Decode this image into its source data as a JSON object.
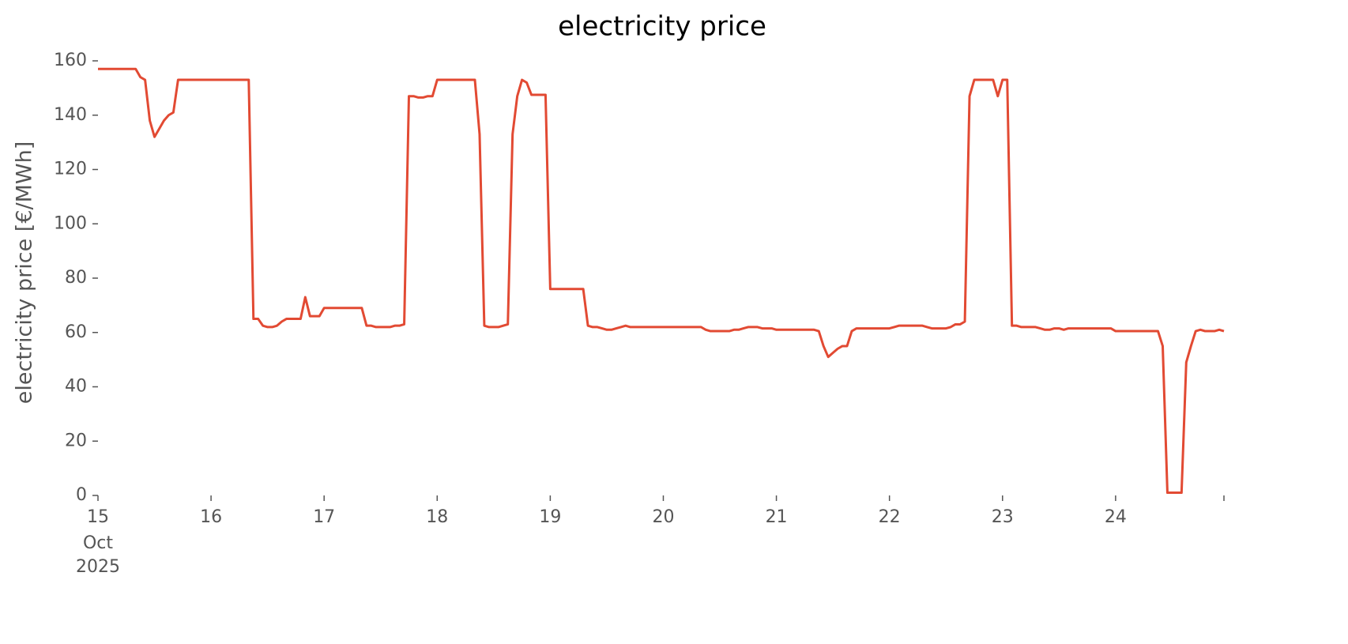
{
  "chart_data": {
    "type": "line",
    "title": "electricity price",
    "ylabel": "electricity price [€/MWh]",
    "x": [
      "2025-10-15T00:00",
      "2025-10-15T01:00",
      "2025-10-15T02:00",
      "2025-10-15T03:00",
      "2025-10-15T04:00",
      "2025-10-15T05:00",
      "2025-10-15T06:00",
      "2025-10-15T07:00",
      "2025-10-15T08:00",
      "2025-10-15T09:00",
      "2025-10-15T10:00",
      "2025-10-15T11:00",
      "2025-10-15T12:00",
      "2025-10-15T13:00",
      "2025-10-15T14:00",
      "2025-10-15T15:00",
      "2025-10-15T16:00",
      "2025-10-15T17:00",
      "2025-10-15T18:00",
      "2025-10-15T19:00",
      "2025-10-15T20:00",
      "2025-10-15T21:00",
      "2025-10-15T22:00",
      "2025-10-15T23:00",
      "2025-10-16T00:00",
      "2025-10-16T01:00",
      "2025-10-16T02:00",
      "2025-10-16T03:00",
      "2025-10-16T04:00",
      "2025-10-16T05:00",
      "2025-10-16T06:00",
      "2025-10-16T07:00",
      "2025-10-16T08:00",
      "2025-10-16T09:00",
      "2025-10-16T10:00",
      "2025-10-16T11:00",
      "2025-10-16T12:00",
      "2025-10-16T13:00",
      "2025-10-16T14:00",
      "2025-10-16T15:00",
      "2025-10-16T16:00",
      "2025-10-16T17:00",
      "2025-10-16T18:00",
      "2025-10-16T19:00",
      "2025-10-16T20:00",
      "2025-10-16T21:00",
      "2025-10-16T22:00",
      "2025-10-16T23:00",
      "2025-10-17T00:00",
      "2025-10-17T01:00",
      "2025-10-17T02:00",
      "2025-10-17T03:00",
      "2025-10-17T04:00",
      "2025-10-17T05:00",
      "2025-10-17T06:00",
      "2025-10-17T07:00",
      "2025-10-17T08:00",
      "2025-10-17T09:00",
      "2025-10-17T10:00",
      "2025-10-17T11:00",
      "2025-10-17T12:00",
      "2025-10-17T13:00",
      "2025-10-17T14:00",
      "2025-10-17T15:00",
      "2025-10-17T16:00",
      "2025-10-17T17:00",
      "2025-10-17T18:00",
      "2025-10-17T19:00",
      "2025-10-17T20:00",
      "2025-10-17T21:00",
      "2025-10-17T22:00",
      "2025-10-17T23:00",
      "2025-10-18T00:00",
      "2025-10-18T01:00",
      "2025-10-18T02:00",
      "2025-10-18T03:00",
      "2025-10-18T04:00",
      "2025-10-18T05:00",
      "2025-10-18T06:00",
      "2025-10-18T07:00",
      "2025-10-18T08:00",
      "2025-10-18T09:00",
      "2025-10-18T10:00",
      "2025-10-18T11:00",
      "2025-10-18T12:00",
      "2025-10-18T13:00",
      "2025-10-18T14:00",
      "2025-10-18T15:00",
      "2025-10-18T16:00",
      "2025-10-18T17:00",
      "2025-10-18T18:00",
      "2025-10-18T19:00",
      "2025-10-18T20:00",
      "2025-10-18T21:00",
      "2025-10-18T22:00",
      "2025-10-18T23:00",
      "2025-10-19T00:00",
      "2025-10-19T01:00",
      "2025-10-19T02:00",
      "2025-10-19T03:00",
      "2025-10-19T04:00",
      "2025-10-19T05:00",
      "2025-10-19T06:00",
      "2025-10-19T07:00",
      "2025-10-19T08:00",
      "2025-10-19T09:00",
      "2025-10-19T10:00",
      "2025-10-19T11:00",
      "2025-10-19T12:00",
      "2025-10-19T13:00",
      "2025-10-19T14:00",
      "2025-10-19T15:00",
      "2025-10-19T16:00",
      "2025-10-19T17:00",
      "2025-10-19T18:00",
      "2025-10-19T19:00",
      "2025-10-19T20:00",
      "2025-10-19T21:00",
      "2025-10-19T22:00",
      "2025-10-19T23:00",
      "2025-10-20T00:00",
      "2025-10-20T01:00",
      "2025-10-20T02:00",
      "2025-10-20T03:00",
      "2025-10-20T04:00",
      "2025-10-20T05:00",
      "2025-10-20T06:00",
      "2025-10-20T07:00",
      "2025-10-20T08:00",
      "2025-10-20T09:00",
      "2025-10-20T10:00",
      "2025-10-20T11:00",
      "2025-10-20T12:00",
      "2025-10-20T13:00",
      "2025-10-20T14:00",
      "2025-10-20T15:00",
      "2025-10-20T16:00",
      "2025-10-20T17:00",
      "2025-10-20T18:00",
      "2025-10-20T19:00",
      "2025-10-20T20:00",
      "2025-10-20T21:00",
      "2025-10-20T22:00",
      "2025-10-20T23:00",
      "2025-10-21T00:00",
      "2025-10-21T01:00",
      "2025-10-21T02:00",
      "2025-10-21T03:00",
      "2025-10-21T04:00",
      "2025-10-21T05:00",
      "2025-10-21T06:00",
      "2025-10-21T07:00",
      "2025-10-21T08:00",
      "2025-10-21T09:00",
      "2025-10-21T10:00",
      "2025-10-21T11:00",
      "2025-10-21T12:00",
      "2025-10-21T13:00",
      "2025-10-21T14:00",
      "2025-10-21T15:00",
      "2025-10-21T16:00",
      "2025-10-21T17:00",
      "2025-10-21T18:00",
      "2025-10-21T19:00",
      "2025-10-21T20:00",
      "2025-10-21T21:00",
      "2025-10-21T22:00",
      "2025-10-21T23:00",
      "2025-10-22T00:00",
      "2025-10-22T01:00",
      "2025-10-22T02:00",
      "2025-10-22T03:00",
      "2025-10-22T04:00",
      "2025-10-22T05:00",
      "2025-10-22T06:00",
      "2025-10-22T07:00",
      "2025-10-22T08:00",
      "2025-10-22T09:00",
      "2025-10-22T10:00",
      "2025-10-22T11:00",
      "2025-10-22T12:00",
      "2025-10-22T13:00",
      "2025-10-22T14:00",
      "2025-10-22T15:00",
      "2025-10-22T16:00",
      "2025-10-22T17:00",
      "2025-10-22T18:00",
      "2025-10-22T19:00",
      "2025-10-22T20:00",
      "2025-10-22T21:00",
      "2025-10-22T22:00",
      "2025-10-22T23:00",
      "2025-10-23T00:00",
      "2025-10-23T01:00",
      "2025-10-23T02:00",
      "2025-10-23T03:00",
      "2025-10-23T04:00",
      "2025-10-23T05:00",
      "2025-10-23T06:00",
      "2025-10-23T07:00",
      "2025-10-23T08:00",
      "2025-10-23T09:00",
      "2025-10-23T10:00",
      "2025-10-23T11:00",
      "2025-10-23T12:00",
      "2025-10-23T13:00",
      "2025-10-23T14:00",
      "2025-10-23T15:00",
      "2025-10-23T16:00",
      "2025-10-23T17:00",
      "2025-10-23T18:00",
      "2025-10-23T19:00",
      "2025-10-23T20:00",
      "2025-10-23T21:00",
      "2025-10-23T22:00",
      "2025-10-23T23:00",
      "2025-10-24T00:00",
      "2025-10-24T01:00",
      "2025-10-24T02:00",
      "2025-10-24T03:00",
      "2025-10-24T04:00",
      "2025-10-24T05:00",
      "2025-10-24T06:00",
      "2025-10-24T07:00",
      "2025-10-24T08:00",
      "2025-10-24T09:00",
      "2025-10-24T10:00",
      "2025-10-24T11:00",
      "2025-10-24T12:00",
      "2025-10-24T13:00",
      "2025-10-24T14:00",
      "2025-10-24T15:00",
      "2025-10-24T16:00",
      "2025-10-24T17:00",
      "2025-10-24T18:00",
      "2025-10-24T19:00",
      "2025-10-24T20:00",
      "2025-10-24T21:00",
      "2025-10-24T22:00",
      "2025-10-24T23:00"
    ],
    "series": [
      {
        "color": "#e24a33",
        "values": [
          157,
          157,
          157,
          157,
          157,
          157,
          157,
          157,
          157,
          154,
          153,
          138,
          132,
          135,
          138,
          140,
          141,
          153,
          153,
          153,
          153,
          153,
          153,
          153,
          153,
          153,
          153,
          153,
          153,
          153,
          153,
          153,
          153,
          65,
          65,
          62.5,
          62,
          62,
          62.5,
          64,
          65,
          65,
          65,
          65,
          73,
          66,
          66,
          66,
          69,
          69,
          69,
          69,
          69,
          69,
          69,
          69,
          69,
          62.5,
          62.5,
          62,
          62,
          62,
          62,
          62.5,
          62.5,
          63,
          147,
          147,
          146.5,
          146.5,
          147,
          147,
          153,
          153,
          153,
          153,
          153,
          153,
          153,
          153,
          153,
          133,
          62.5,
          62,
          62,
          62,
          62.5,
          63,
          133,
          147,
          153,
          152,
          147.5,
          147.5,
          147.5,
          147.5,
          76,
          76,
          76,
          76,
          76,
          76,
          76,
          76,
          62.5,
          62,
          62,
          61.5,
          61,
          61,
          61.5,
          62,
          62.5,
          62,
          62,
          62,
          62,
          62,
          62,
          62,
          62,
          62,
          62,
          62,
          62,
          62,
          62,
          62,
          62,
          61,
          60.5,
          60.5,
          60.5,
          60.5,
          60.5,
          61,
          61,
          61.5,
          62,
          62,
          62,
          61.5,
          61.5,
          61.5,
          61,
          61,
          61,
          61,
          61,
          61,
          61,
          61,
          61,
          60.5,
          55,
          51,
          52.5,
          54,
          55,
          55,
          60.5,
          61.5,
          61.5,
          61.5,
          61.5,
          61.5,
          61.5,
          61.5,
          61.5,
          62,
          62.5,
          62.5,
          62.5,
          62.5,
          62.5,
          62.5,
          62,
          61.5,
          61.5,
          61.5,
          61.5,
          62,
          63,
          63,
          64,
          147,
          153,
          153,
          153,
          153,
          153,
          147,
          153,
          153,
          62.5,
          62.5,
          62,
          62,
          62,
          62,
          61.5,
          61,
          61,
          61.5,
          61.5,
          61,
          61.5,
          61.5,
          61.5,
          61.5,
          61.5,
          61.5,
          61.5,
          61.5,
          61.5,
          61.5,
          60.5,
          60.5,
          60.5,
          60.5,
          60.5,
          60.5,
          60.5,
          60.5,
          60.5,
          60.5,
          55,
          1,
          1,
          1,
          1,
          49,
          55,
          60.5,
          61,
          60.5,
          60.5,
          60.5,
          61,
          60.5
        ]
      }
    ],
    "xlim": [
      "2025-10-15T00:00",
      "2025-10-24T23:00"
    ],
    "xticks": [
      {
        "value": "2025-10-15T00:00",
        "label": "15"
      },
      {
        "value": "2025-10-16T00:00",
        "label": "16"
      },
      {
        "value": "2025-10-17T00:00",
        "label": "17"
      },
      {
        "value": "2025-10-18T00:00",
        "label": "18"
      },
      {
        "value": "2025-10-19T00:00",
        "label": "19"
      },
      {
        "value": "2025-10-20T00:00",
        "label": "20"
      },
      {
        "value": "2025-10-21T00:00",
        "label": "21"
      },
      {
        "value": "2025-10-22T00:00",
        "label": "22"
      },
      {
        "value": "2025-10-23T00:00",
        "label": "23"
      },
      {
        "value": "2025-10-24T00:00",
        "label": "24"
      },
      {
        "value": "2025-10-24T23:00",
        "label": null
      }
    ],
    "x_tick_sublabels": [
      "Oct",
      "2025"
    ],
    "ylim": [
      0,
      160
    ],
    "yticks": [
      0,
      20,
      40,
      60,
      80,
      100,
      120,
      140,
      160
    ],
    "grid": false
  }
}
